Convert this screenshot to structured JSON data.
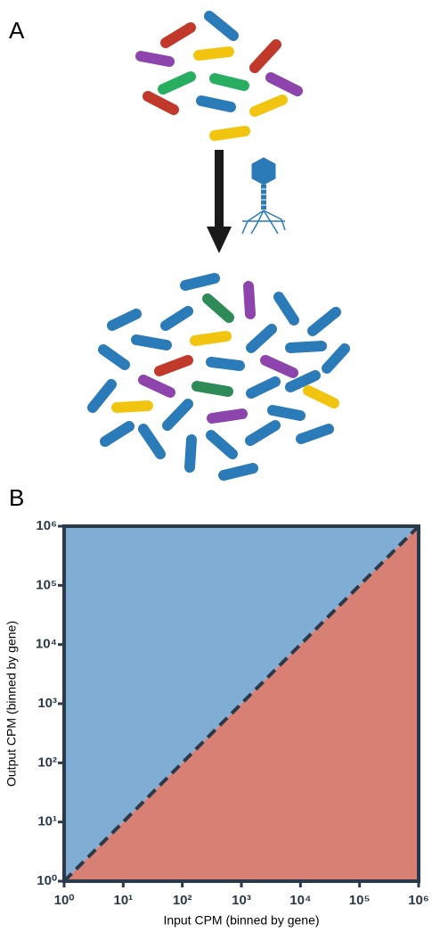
{
  "panels": [
    "A",
    "B"
  ],
  "chart_data": {
    "type": "line",
    "x_label": "Input CPM (binned by gene)",
    "y_label": "Output CPM (binned by gene)",
    "x": [
      1,
      1000000
    ],
    "series": [
      {
        "color": "#2b3a4a",
        "values": [
          1,
          1000000
        ],
        "dashed": true
      }
    ],
    "fill_above": "#7fadd3",
    "fill_below": "#d98075",
    "axis_color": "#2b3a4a",
    "log": true,
    "xlim": [
      1,
      1000000
    ],
    "ylim": [
      1,
      1000000
    ],
    "xticks": [
      {
        "value": 1,
        "label": "10⁰"
      },
      {
        "value": 10,
        "label": "10¹"
      },
      {
        "value": 100,
        "label": "10²"
      },
      {
        "value": 1000,
        "label": "10³"
      },
      {
        "value": 10000,
        "label": "10⁴"
      },
      {
        "value": 100000,
        "label": "10⁵"
      },
      {
        "value": 1000000,
        "label": "10⁶"
      }
    ],
    "yticks": [
      {
        "value": 1,
        "label": "10⁰"
      },
      {
        "value": 10,
        "label": "10¹"
      },
      {
        "value": 100,
        "label": "10²"
      },
      {
        "value": 1000,
        "label": "10³"
      },
      {
        "value": 10000,
        "label": "10⁴"
      },
      {
        "value": 100000,
        "label": "10⁵"
      },
      {
        "value": 1000000,
        "label": "10⁶"
      }
    ]
  }
}
